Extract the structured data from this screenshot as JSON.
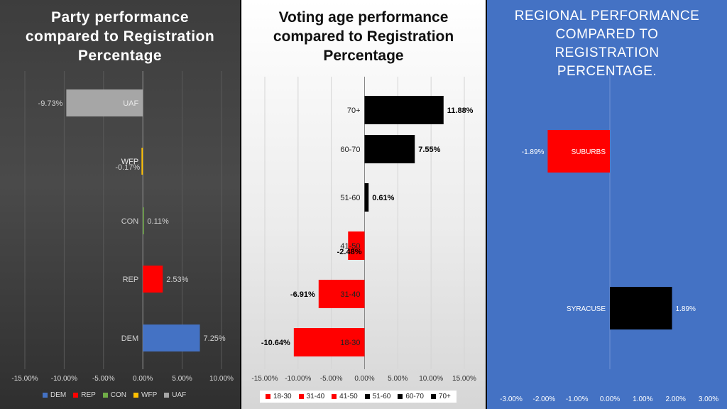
{
  "chart_data": [
    {
      "type": "bar",
      "orientation": "horizontal",
      "title": [
        "Party performance",
        "compared to Registration",
        "Percentage"
      ],
      "categories": [
        "UAF",
        "WFP",
        "CON",
        "REP",
        "DEM"
      ],
      "values": [
        -9.73,
        -0.17,
        0.11,
        2.53,
        7.25
      ],
      "labels": [
        "-9.73%",
        "-0.17%",
        "0.11%",
        "2.53%",
        "7.25%"
      ],
      "xlim": [
        -15,
        10
      ],
      "ticks": [
        "-15.00%",
        "-10.00%",
        "-5.00%",
        "0.00%",
        "5.00%",
        "10.00%"
      ],
      "tick_values": [
        -15,
        -10,
        -5,
        0,
        5,
        10
      ],
      "colors": [
        "#a6a6a6",
        "#ffc000",
        "#70ad47",
        "#ff0000",
        "#4472c4"
      ],
      "legend": [
        "DEM",
        "REP",
        "CON",
        "WFP",
        "UAF"
      ],
      "legend_colors": [
        "#4472c4",
        "#ff0000",
        "#70ad47",
        "#ffc000",
        "#a6a6a6"
      ]
    },
    {
      "type": "bar",
      "orientation": "horizontal",
      "title": [
        "Voting age performance",
        "compared to Registration",
        "Percentage"
      ],
      "categories": [
        "70+",
        "60-70",
        "51-60",
        "41-50",
        "31-40",
        "18-30"
      ],
      "values": [
        11.88,
        7.55,
        0.61,
        -2.48,
        -6.91,
        -10.64
      ],
      "labels": [
        "11.88%",
        "7.55%",
        "0.61%",
        "-2.48%",
        "-6.91%",
        "-10.64%"
      ],
      "xlim": [
        -15,
        15
      ],
      "ticks": [
        "-15.00%",
        "-10.00%",
        "-5.00%",
        "0.00%",
        "5.00%",
        "10.00%",
        "15.00%"
      ],
      "tick_values": [
        -15,
        -10,
        -5,
        0,
        5,
        10,
        15
      ],
      "colors": [
        "#000000",
        "#000000",
        "#000000",
        "#ff0000",
        "#ff0000",
        "#ff0000"
      ],
      "legend": [
        "18-30",
        "31-40",
        "41-50",
        "51-60",
        "60-70",
        "70+"
      ],
      "legend_colors": [
        "#ff0000",
        "#ff0000",
        "#ff0000",
        "#000000",
        "#000000",
        "#000000"
      ]
    },
    {
      "type": "bar",
      "orientation": "horizontal",
      "title": [
        "REGIONAL PERFORMANCE",
        "COMPARED TO",
        "REGISTRATION",
        "PERCENTAGE."
      ],
      "categories": [
        "SUBURBS",
        "SYRACUSE"
      ],
      "values": [
        -1.89,
        1.89
      ],
      "labels": [
        "-1.89%",
        "1.89%"
      ],
      "xlim": [
        -3,
        3
      ],
      "ticks": [
        "-3.00%",
        "-2.00%",
        "-1.00%",
        "0.00%",
        "1.00%",
        "2.00%",
        "3.00%"
      ],
      "tick_values": [
        -3,
        -2,
        -1,
        0,
        1,
        2,
        3
      ],
      "colors": [
        "#ff0000",
        "#000000"
      ]
    }
  ]
}
